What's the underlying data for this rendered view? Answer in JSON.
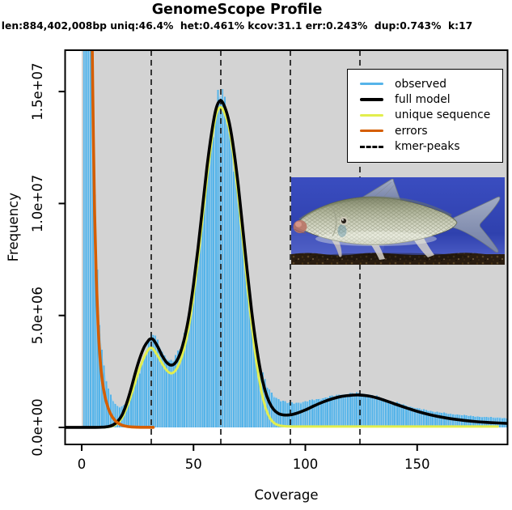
{
  "chart": {
    "title": "GenomeScope Profile",
    "subtitle": "len:884,402,008bp uniq:46.4%  het:0.461% kcov:31.1 err:0.243%  dup:0.743%  k:17",
    "xlabel": "Coverage",
    "ylabel": "Frequency"
  },
  "chart_data": {
    "type": "area",
    "title": "GenomeScope Profile",
    "subtitle": "len:884,402,008bp uniq:46.4%  het:0.461% kcov:31.1 err:0.243%  dup:0.743%  k:17",
    "xlabel": "Coverage",
    "ylabel": "Frequency",
    "xlim": [
      -8,
      190
    ],
    "ylim": [
      0,
      16840000
    ],
    "grid": false,
    "panel_bg": "#D3D3D3",
    "x_ticks": [
      0,
      50,
      100,
      150
    ],
    "y_ticks": [
      {
        "value": 0,
        "label": "0.0e+00"
      },
      {
        "value": 5000000,
        "label": "5.0e+06"
      },
      {
        "value": 10000000,
        "label": "1.0e+07"
      },
      {
        "value": 15000000,
        "label": "1.5e+07"
      }
    ],
    "kmer_peaks": [
      31.1,
      62.2,
      93.3,
      124.4
    ],
    "series": [
      {
        "name": "observed",
        "type": "histogram",
        "color": "#56B4E9",
        "halo_color": "#A6D0E9",
        "points": [
          [
            1,
            18000000
          ],
          [
            2,
            18000000
          ],
          [
            3,
            18000000
          ],
          [
            4,
            18000000
          ],
          [
            5,
            15500000
          ],
          [
            6,
            10500000
          ],
          [
            7,
            7000000
          ],
          [
            8,
            4800000
          ],
          [
            9,
            3500000
          ],
          [
            10,
            2700000
          ],
          [
            11,
            2100000
          ],
          [
            12,
            1700000
          ],
          [
            13,
            1400000
          ],
          [
            14,
            1200000
          ],
          [
            15,
            1050000
          ],
          [
            16,
            950000
          ],
          [
            17,
            920000
          ],
          [
            18,
            950000
          ],
          [
            19,
            1000000
          ],
          [
            20,
            1100000
          ],
          [
            22,
            1450000
          ],
          [
            24,
            1900000
          ],
          [
            26,
            2500000
          ],
          [
            28,
            3200000
          ],
          [
            30,
            3900000
          ],
          [
            31,
            4100000
          ],
          [
            32,
            4150000
          ],
          [
            33,
            4000000
          ],
          [
            35,
            3600000
          ],
          [
            37,
            3200000
          ],
          [
            39,
            3000000
          ],
          [
            40,
            2950000
          ],
          [
            41,
            3000000
          ],
          [
            43,
            3300000
          ],
          [
            45,
            3800000
          ],
          [
            47,
            4600000
          ],
          [
            50,
            6400000
          ],
          [
            53,
            8800000
          ],
          [
            56,
            11500000
          ],
          [
            59,
            13500000
          ],
          [
            61,
            14600000
          ],
          [
            62,
            14800000
          ],
          [
            63,
            14700000
          ],
          [
            65,
            14000000
          ],
          [
            68,
            12000000
          ],
          [
            71,
            9500000
          ],
          [
            74,
            6800000
          ],
          [
            77,
            4400000
          ],
          [
            80,
            2700000
          ],
          [
            83,
            1800000
          ],
          [
            86,
            1400000
          ],
          [
            89,
            1200000
          ],
          [
            92,
            1100000
          ],
          [
            95,
            1080000
          ],
          [
            100,
            1150000
          ],
          [
            105,
            1250000
          ],
          [
            110,
            1350000
          ],
          [
            115,
            1450000
          ],
          [
            120,
            1500000
          ],
          [
            124,
            1520000
          ],
          [
            128,
            1480000
          ],
          [
            132,
            1380000
          ],
          [
            136,
            1250000
          ],
          [
            140,
            1120000
          ],
          [
            145,
            980000
          ],
          [
            150,
            850000
          ],
          [
            156,
            730000
          ],
          [
            162,
            640000
          ],
          [
            168,
            570000
          ],
          [
            175,
            500000
          ],
          [
            182,
            450000
          ],
          [
            190,
            400000
          ]
        ]
      },
      {
        "name": "unique sequence",
        "type": "line",
        "color": "#E2EE4E",
        "width": 3,
        "points": [
          [
            10,
            8000
          ],
          [
            12,
            25000
          ],
          [
            14,
            70000
          ],
          [
            16,
            180000
          ],
          [
            18,
            420000
          ],
          [
            20,
            850000
          ],
          [
            22,
            1400000
          ],
          [
            24,
            2050000
          ],
          [
            26,
            2650000
          ],
          [
            28,
            3150000
          ],
          [
            30,
            3500000
          ],
          [
            31,
            3550000
          ],
          [
            32,
            3500000
          ],
          [
            34,
            3200000
          ],
          [
            36,
            2850000
          ],
          [
            38,
            2550000
          ],
          [
            40,
            2420000
          ],
          [
            42,
            2550000
          ],
          [
            44,
            2950000
          ],
          [
            46,
            3600000
          ],
          [
            48,
            4550000
          ],
          [
            50,
            5900000
          ],
          [
            52,
            7500000
          ],
          [
            54,
            9300000
          ],
          [
            56,
            11100000
          ],
          [
            58,
            12700000
          ],
          [
            60,
            13900000
          ],
          [
            62,
            14300000
          ],
          [
            64,
            14000000
          ],
          [
            66,
            13300000
          ],
          [
            68,
            12000000
          ],
          [
            70,
            10300000
          ],
          [
            72,
            8400000
          ],
          [
            74,
            6400000
          ],
          [
            76,
            4600000
          ],
          [
            78,
            3000000
          ],
          [
            80,
            1800000
          ],
          [
            82,
            950000
          ],
          [
            84,
            450000
          ],
          [
            86,
            200000
          ],
          [
            88,
            100000
          ],
          [
            90,
            60000
          ],
          [
            95,
            40000
          ],
          [
            110,
            40000
          ],
          [
            130,
            40000
          ],
          [
            160,
            40000
          ],
          [
            186,
            40000
          ]
        ]
      },
      {
        "name": "full model",
        "type": "line",
        "color": "#000000",
        "width": 3.6,
        "points": [
          [
            -8,
            2000
          ],
          [
            0,
            3000
          ],
          [
            6,
            5000
          ],
          [
            8,
            8000
          ],
          [
            10,
            15000
          ],
          [
            12,
            40000
          ],
          [
            14,
            110000
          ],
          [
            16,
            260000
          ],
          [
            18,
            550000
          ],
          [
            20,
            1050000
          ],
          [
            22,
            1700000
          ],
          [
            24,
            2450000
          ],
          [
            26,
            3100000
          ],
          [
            28,
            3600000
          ],
          [
            30,
            3900000
          ],
          [
            31,
            3950000
          ],
          [
            32,
            3920000
          ],
          [
            34,
            3600000
          ],
          [
            36,
            3200000
          ],
          [
            38,
            2900000
          ],
          [
            40,
            2780000
          ],
          [
            42,
            2900000
          ],
          [
            44,
            3300000
          ],
          [
            46,
            4000000
          ],
          [
            48,
            5000000
          ],
          [
            50,
            6400000
          ],
          [
            52,
            8000000
          ],
          [
            54,
            9800000
          ],
          [
            56,
            11600000
          ],
          [
            58,
            13100000
          ],
          [
            60,
            14200000
          ],
          [
            62,
            14600000
          ],
          [
            64,
            14300000
          ],
          [
            66,
            13600000
          ],
          [
            68,
            12400000
          ],
          [
            70,
            10800000
          ],
          [
            72,
            8900000
          ],
          [
            74,
            7000000
          ],
          [
            76,
            5200000
          ],
          [
            78,
            3700000
          ],
          [
            80,
            2500000
          ],
          [
            82,
            1650000
          ],
          [
            84,
            1100000
          ],
          [
            86,
            780000
          ],
          [
            88,
            620000
          ],
          [
            90,
            560000
          ],
          [
            93,
            560000
          ],
          [
            96,
            630000
          ],
          [
            100,
            780000
          ],
          [
            104,
            970000
          ],
          [
            108,
            1140000
          ],
          [
            112,
            1280000
          ],
          [
            116,
            1380000
          ],
          [
            120,
            1430000
          ],
          [
            124,
            1450000
          ],
          [
            128,
            1410000
          ],
          [
            132,
            1320000
          ],
          [
            136,
            1190000
          ],
          [
            140,
            1050000
          ],
          [
            145,
            880000
          ],
          [
            150,
            720000
          ],
          [
            156,
            560000
          ],
          [
            162,
            440000
          ],
          [
            168,
            350000
          ],
          [
            175,
            270000
          ],
          [
            182,
            220000
          ],
          [
            190,
            180000
          ]
        ]
      },
      {
        "name": "errors",
        "type": "line",
        "color": "#D55E00",
        "width": 3.6,
        "points": [
          [
            4.6,
            18000000
          ],
          [
            5.2,
            13000000
          ],
          [
            5.8,
            9500000
          ],
          [
            6.5,
            6700000
          ],
          [
            7.3,
            4600000
          ],
          [
            8.2,
            3100000
          ],
          [
            9.2,
            2100000
          ],
          [
            10.5,
            1350000
          ],
          [
            12,
            820000
          ],
          [
            13.5,
            500000
          ],
          [
            15,
            300000
          ],
          [
            16.5,
            180000
          ],
          [
            18,
            100000
          ],
          [
            20,
            50000
          ],
          [
            22,
            25000
          ],
          [
            25,
            12000
          ],
          [
            28,
            7000
          ],
          [
            32,
            5000
          ]
        ]
      }
    ],
    "legend": {
      "position": "top-right",
      "items": [
        {
          "label": "observed",
          "color": "#56B4E9",
          "style": "solid"
        },
        {
          "label": "full model",
          "color": "#000000",
          "style": "solid"
        },
        {
          "label": "unique sequence",
          "color": "#E2EE4E",
          "style": "solid"
        },
        {
          "label": "errors",
          "color": "#D55E00",
          "style": "solid"
        },
        {
          "label": "kmer-peaks",
          "color": "#000000",
          "style": "dashed"
        }
      ]
    },
    "annotations": [
      {
        "type": "inset-photo",
        "description": "fish-photo",
        "x_range": [
          97,
          189
        ],
        "y_range": [
          1100000,
          11200000
        ]
      }
    ]
  }
}
